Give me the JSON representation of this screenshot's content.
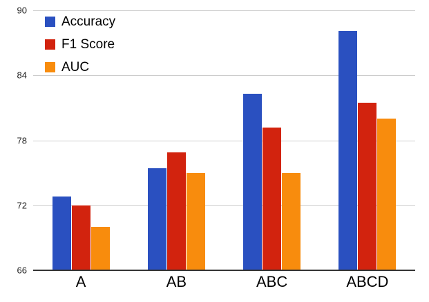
{
  "chart_data": {
    "type": "bar",
    "title": "",
    "xlabel": "",
    "ylabel": "",
    "categories": [
      "A",
      "AB",
      "ABC",
      "ABCD"
    ],
    "series": [
      {
        "name": "Accuracy",
        "color": "#2a50c0",
        "values": [
          72.8,
          75.4,
          82.3,
          88.1
        ]
      },
      {
        "name": "F1 Score",
        "color": "#d2230e",
        "values": [
          72.0,
          76.9,
          79.2,
          81.5
        ]
      },
      {
        "name": "AUC",
        "color": "#f88c0d",
        "values": [
          70.0,
          75.0,
          75.0,
          80.0
        ]
      }
    ],
    "ylim": [
      66,
      90
    ],
    "yticks": [
      66,
      72,
      78,
      84,
      90
    ],
    "grid": true,
    "legend_position": "top-left"
  },
  "colors": {
    "gridline": "#cccccc",
    "axis_line": "#333333",
    "tick_text": "#222222",
    "label_text": "#000000",
    "background": "#ffffff"
  }
}
